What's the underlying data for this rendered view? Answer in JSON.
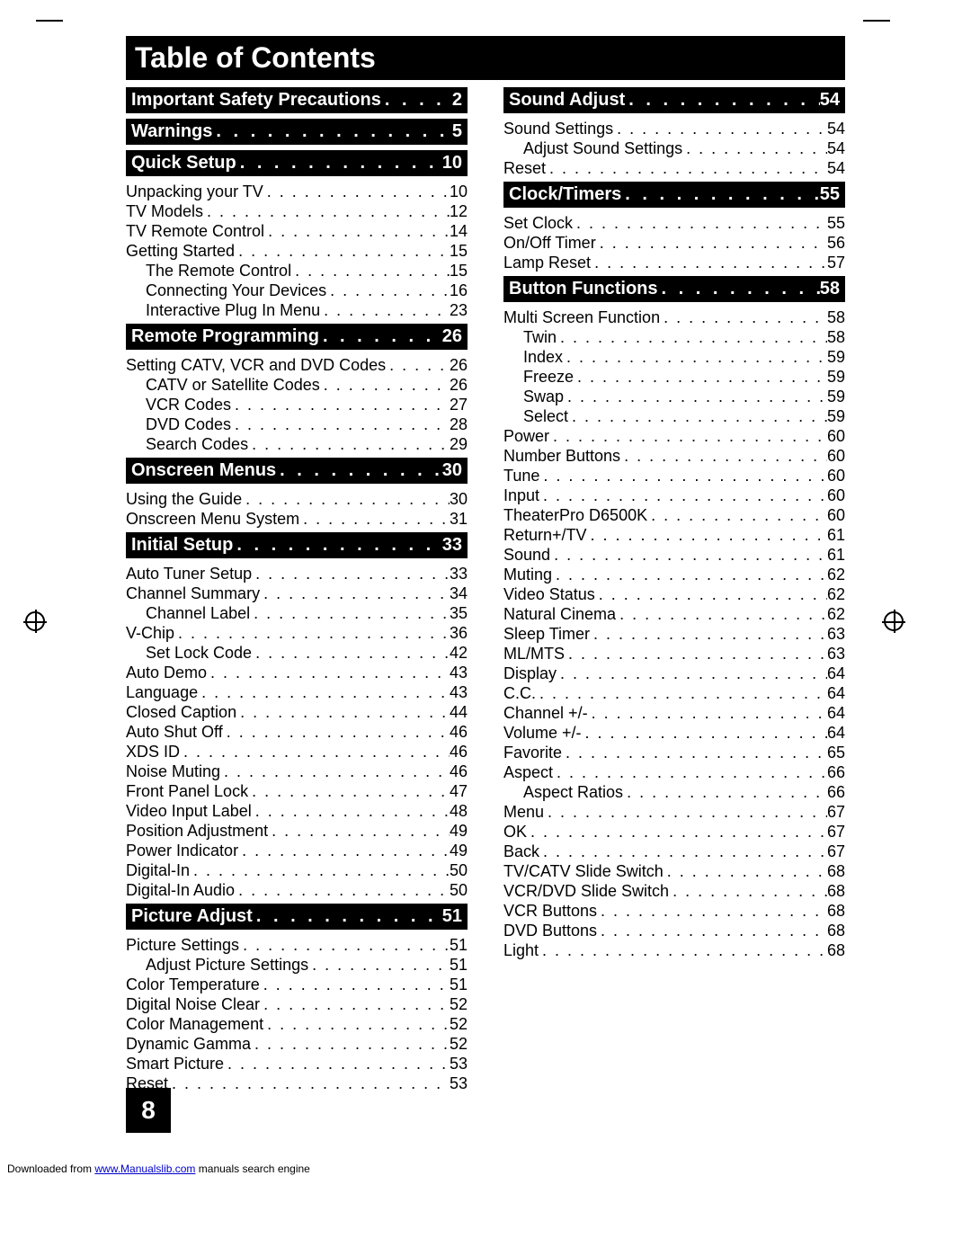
{
  "title": "Table of Contents",
  "page_number": "8",
  "footer_prefix": "Downloaded from ",
  "footer_link": "www.Manualslib.com",
  "footer_suffix": " manuals search engine",
  "dot_fill": ". . . . . . . . . . . . . . . . . . . . . . . . . . . . . . . . . . . .",
  "dot_fill_header": ". . . . . . . . . . . . . . . .",
  "columns": [
    [
      {
        "type": "section",
        "label": "Important Safety Precautions",
        "page": "2"
      },
      {
        "type": "section",
        "label": "Warnings",
        "page": "5"
      },
      {
        "type": "section",
        "label": "Quick Setup",
        "page": "10"
      },
      {
        "type": "entry",
        "indent": 1,
        "label": "Unpacking your TV",
        "page": "10"
      },
      {
        "type": "entry",
        "indent": 1,
        "label": "TV Models",
        "page": "12"
      },
      {
        "type": "entry",
        "indent": 1,
        "label": "TV Remote Control",
        "page": "14"
      },
      {
        "type": "entry",
        "indent": 1,
        "label": "Getting Started",
        "page": "15"
      },
      {
        "type": "entry",
        "indent": 2,
        "label": "The Remote Control",
        "page": "15"
      },
      {
        "type": "entry",
        "indent": 2,
        "label": "Connecting Your Devices",
        "page": "16"
      },
      {
        "type": "entry",
        "indent": 2,
        "label": "Interactive Plug In Menu",
        "page": "23"
      },
      {
        "type": "section",
        "label": "Remote Programming",
        "page": "26"
      },
      {
        "type": "entry",
        "indent": 1,
        "label": "Setting CATV, VCR and DVD Codes",
        "page": "26"
      },
      {
        "type": "entry",
        "indent": 2,
        "label": "CATV or Satellite Codes",
        "page": "26"
      },
      {
        "type": "entry",
        "indent": 2,
        "label": "VCR Codes",
        "page": "27"
      },
      {
        "type": "entry",
        "indent": 2,
        "label": "DVD Codes",
        "page": "28"
      },
      {
        "type": "entry",
        "indent": 2,
        "label": "Search Codes",
        "page": "29"
      },
      {
        "type": "section",
        "label": "Onscreen Menus",
        "page": "30"
      },
      {
        "type": "entry",
        "indent": 1,
        "label": "Using the Guide",
        "page": "30"
      },
      {
        "type": "entry",
        "indent": 1,
        "label": "Onscreen Menu System",
        "page": "31"
      },
      {
        "type": "section",
        "label": "Initial Setup",
        "page": "33"
      },
      {
        "type": "entry",
        "indent": 1,
        "label": "Auto Tuner Setup",
        "page": "33"
      },
      {
        "type": "entry",
        "indent": 1,
        "label": "Channel Summary",
        "page": "34"
      },
      {
        "type": "entry",
        "indent": 2,
        "label": "Channel Label",
        "page": "35"
      },
      {
        "type": "entry",
        "indent": 1,
        "label": "V-Chip",
        "page": "36"
      },
      {
        "type": "entry",
        "indent": 2,
        "label": "Set Lock Code",
        "page": "42"
      },
      {
        "type": "entry",
        "indent": 1,
        "label": "Auto Demo",
        "page": "43"
      },
      {
        "type": "entry",
        "indent": 1,
        "label": "Language",
        "page": "43"
      },
      {
        "type": "entry",
        "indent": 1,
        "label": "Closed Caption",
        "page": "44"
      },
      {
        "type": "entry",
        "indent": 1,
        "label": "Auto Shut Off",
        "page": "46"
      },
      {
        "type": "entry",
        "indent": 1,
        "label": "XDS ID",
        "page": "46"
      },
      {
        "type": "entry",
        "indent": 1,
        "label": "Noise Muting",
        "page": "46"
      },
      {
        "type": "entry",
        "indent": 1,
        "label": "Front Panel Lock",
        "page": "47"
      },
      {
        "type": "entry",
        "indent": 1,
        "label": "Video Input Label",
        "page": "48"
      },
      {
        "type": "entry",
        "indent": 1,
        "label": "Position Adjustment",
        "page": "49"
      },
      {
        "type": "entry",
        "indent": 1,
        "label": "Power Indicator",
        "page": "49"
      },
      {
        "type": "entry",
        "indent": 1,
        "label": "Digital-In",
        "page": "50"
      },
      {
        "type": "entry",
        "indent": 1,
        "label": "Digital-In Audio",
        "page": "50"
      },
      {
        "type": "section",
        "label": "Picture Adjust",
        "page": "51"
      },
      {
        "type": "entry",
        "indent": 1,
        "label": "Picture Settings",
        "page": "51"
      },
      {
        "type": "entry",
        "indent": 2,
        "label": "Adjust Picture Settings",
        "page": "51"
      },
      {
        "type": "entry",
        "indent": 1,
        "label": "Color Temperature",
        "page": "51"
      },
      {
        "type": "entry",
        "indent": 1,
        "label": "Digital Noise Clear",
        "page": "52"
      },
      {
        "type": "entry",
        "indent": 1,
        "label": "Color Management",
        "page": "52"
      },
      {
        "type": "entry",
        "indent": 1,
        "label": "Dynamic Gamma",
        "page": "52"
      },
      {
        "type": "entry",
        "indent": 1,
        "label": "Smart Picture",
        "page": "53"
      },
      {
        "type": "entry",
        "indent": 1,
        "label": "Reset",
        "page": "53"
      }
    ],
    [
      {
        "type": "section",
        "label": "Sound Adjust",
        "page": "54"
      },
      {
        "type": "entry",
        "indent": 1,
        "label": "Sound Settings",
        "page": "54"
      },
      {
        "type": "entry",
        "indent": 2,
        "label": "Adjust Sound Settings",
        "page": "54"
      },
      {
        "type": "entry",
        "indent": 1,
        "label": "Reset",
        "page": "54"
      },
      {
        "type": "section",
        "label": "Clock/Timers",
        "page": "55"
      },
      {
        "type": "entry",
        "indent": 1,
        "label": "Set Clock",
        "page": "55"
      },
      {
        "type": "entry",
        "indent": 1,
        "label": "On/Off Timer",
        "page": "56"
      },
      {
        "type": "entry",
        "indent": 1,
        "label": "Lamp Reset",
        "page": "57"
      },
      {
        "type": "section",
        "label": "Button Functions",
        "page": "58"
      },
      {
        "type": "entry",
        "indent": 1,
        "label": "Multi Screen Function",
        "page": "58"
      },
      {
        "type": "entry",
        "indent": 2,
        "label": "Twin",
        "page": "58"
      },
      {
        "type": "entry",
        "indent": 2,
        "label": "Index",
        "page": "59"
      },
      {
        "type": "entry",
        "indent": 2,
        "label": "Freeze",
        "page": "59"
      },
      {
        "type": "entry",
        "indent": 2,
        "label": "Swap",
        "page": "59"
      },
      {
        "type": "entry",
        "indent": 2,
        "label": "Select",
        "page": "59"
      },
      {
        "type": "entry",
        "indent": 1,
        "label": "Power",
        "page": "60"
      },
      {
        "type": "entry",
        "indent": 1,
        "label": "Number Buttons",
        "page": "60"
      },
      {
        "type": "entry",
        "indent": 1,
        "label": "Tune",
        "page": "60"
      },
      {
        "type": "entry",
        "indent": 1,
        "label": "Input",
        "page": "60"
      },
      {
        "type": "entry",
        "indent": 1,
        "label": "TheaterPro D6500K",
        "page": "60"
      },
      {
        "type": "entry",
        "indent": 1,
        "label": "Return+/TV",
        "page": "61"
      },
      {
        "type": "entry",
        "indent": 1,
        "label": "Sound",
        "page": "61"
      },
      {
        "type": "entry",
        "indent": 1,
        "label": "Muting",
        "page": "62"
      },
      {
        "type": "entry",
        "indent": 1,
        "label": "Video Status",
        "page": "62"
      },
      {
        "type": "entry",
        "indent": 1,
        "label": "Natural Cinema",
        "page": "62"
      },
      {
        "type": "entry",
        "indent": 1,
        "label": "Sleep Timer",
        "page": "63"
      },
      {
        "type": "entry",
        "indent": 1,
        "label": "ML/MTS",
        "page": "63"
      },
      {
        "type": "entry",
        "indent": 1,
        "label": "Display",
        "page": "64"
      },
      {
        "type": "entry",
        "indent": 1,
        "label": "C.C.",
        "page": "64"
      },
      {
        "type": "entry",
        "indent": 1,
        "label": "Channel +/-",
        "page": "64"
      },
      {
        "type": "entry",
        "indent": 1,
        "label": "Volume +/-",
        "page": "64"
      },
      {
        "type": "entry",
        "indent": 1,
        "label": "Favorite",
        "page": "65"
      },
      {
        "type": "entry",
        "indent": 1,
        "label": "Aspect",
        "page": "66"
      },
      {
        "type": "entry",
        "indent": 2,
        "label": "Aspect Ratios",
        "page": "66"
      },
      {
        "type": "entry",
        "indent": 1,
        "label": "Menu",
        "page": "67"
      },
      {
        "type": "entry",
        "indent": 1,
        "label": "OK",
        "page": "67"
      },
      {
        "type": "entry",
        "indent": 1,
        "label": "Back",
        "page": "67"
      },
      {
        "type": "entry",
        "indent": 1,
        "label": "TV/CATV Slide Switch",
        "page": "68"
      },
      {
        "type": "entry",
        "indent": 1,
        "label": "VCR/DVD Slide Switch",
        "page": "68"
      },
      {
        "type": "entry",
        "indent": 1,
        "label": "VCR Buttons",
        "page": "68"
      },
      {
        "type": "entry",
        "indent": 1,
        "label": "DVD Buttons",
        "page": "68"
      },
      {
        "type": "entry",
        "indent": 1,
        "label": "Light",
        "page": "68"
      }
    ]
  ]
}
